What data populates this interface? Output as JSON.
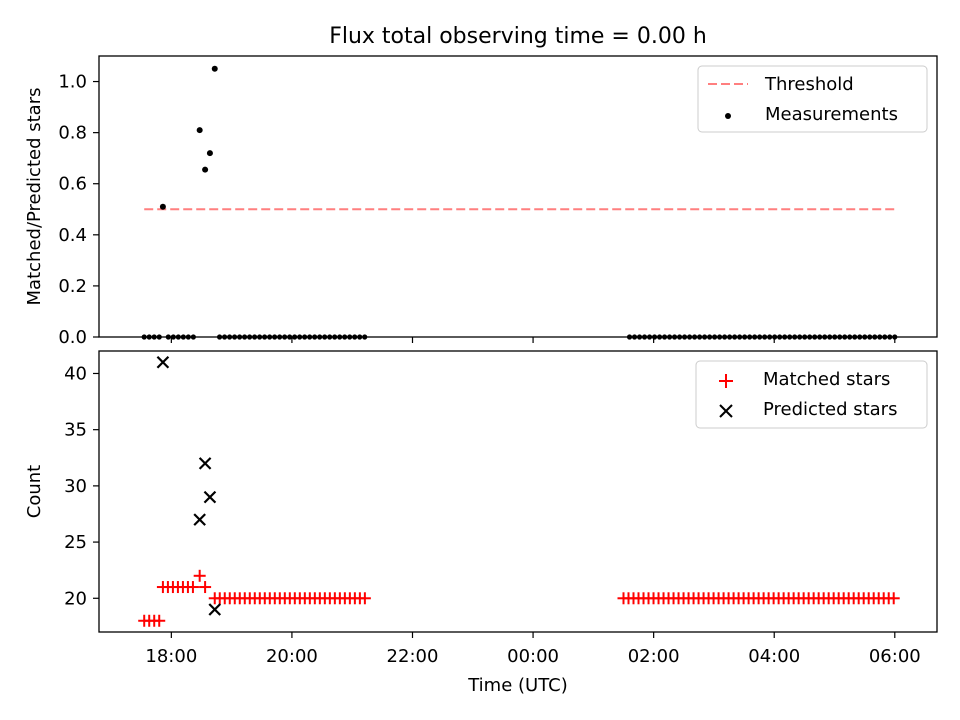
{
  "figure": {
    "title": "Flux total observing time = 0.00 h",
    "xlabel": "Time (UTC)"
  },
  "x_ticks": {
    "times": [
      "18:00",
      "20:00",
      "22:00",
      "00:00",
      "02:00",
      "04:00",
      "06:00"
    ],
    "hours": [
      18,
      20,
      22,
      24,
      26,
      28,
      30
    ]
  },
  "colors": {
    "threshold": "#ff7f7f",
    "measurements": "#000000",
    "matched": "#ff0000",
    "predicted": "#000000"
  },
  "chart_data": [
    {
      "type": "scatter",
      "panel": "top",
      "ylabel": "Matched/Predicted stars",
      "xlim_hours": [
        16.8,
        30.7
      ],
      "ylim": [
        0,
        1.1
      ],
      "yticks": [
        0.0,
        0.2,
        0.4,
        0.6,
        0.8,
        1.0
      ],
      "yticklabels": [
        "0.0",
        "0.2",
        "0.4",
        "0.6",
        "0.8",
        "1.0"
      ],
      "legend_position": "upper right",
      "threshold": {
        "name": "Threshold",
        "value": 0.5,
        "x_range_hours": [
          17.55,
          30.0
        ],
        "style": "dashed"
      },
      "measurements": {
        "name": "Measurements",
        "points": [
          {
            "x": 17.86,
            "y": 0.51
          },
          {
            "x": 18.47,
            "y": 0.81
          },
          {
            "x": 18.56,
            "y": 0.655
          },
          {
            "x": 18.64,
            "y": 0.72
          },
          {
            "x": 18.72,
            "y": 1.05
          }
        ],
        "zero_runs": [
          {
            "start": 17.55,
            "end": 17.8,
            "step": 0.083
          },
          {
            "start": 17.95,
            "end": 18.38,
            "step": 0.083
          },
          {
            "start": 18.8,
            "end": 21.25,
            "step": 0.083
          },
          {
            "start": 25.6,
            "end": 30.05,
            "step": 0.083
          }
        ]
      }
    },
    {
      "type": "scatter",
      "panel": "bottom",
      "ylabel": "Count",
      "xlim_hours": [
        16.8,
        30.7
      ],
      "ylim": [
        17,
        42
      ],
      "yticks": [
        20,
        25,
        30,
        35,
        40
      ],
      "yticklabels": [
        "20",
        "25",
        "30",
        "35",
        "40"
      ],
      "legend_position": "upper right",
      "series": [
        {
          "name": "Matched stars",
          "marker": "plus",
          "points": [
            {
              "x": 18.47,
              "y": 22
            }
          ],
          "runs": [
            {
              "start": 17.55,
              "end": 17.8,
              "step": 0.083,
              "y": 18
            },
            {
              "start": 17.86,
              "end": 18.38,
              "step": 0.083,
              "y": 21
            },
            {
              "start": 18.56,
              "end": 18.64,
              "step": 0.083,
              "y": 21
            },
            {
              "start": 18.72,
              "end": 21.25,
              "step": 0.083,
              "y": 20
            },
            {
              "start": 25.5,
              "end": 30.05,
              "step": 0.083,
              "y": 20
            }
          ]
        },
        {
          "name": "Predicted stars",
          "marker": "x",
          "points": [
            {
              "x": 17.86,
              "y": 41
            },
            {
              "x": 18.47,
              "y": 27
            },
            {
              "x": 18.56,
              "y": 32
            },
            {
              "x": 18.64,
              "y": 29
            },
            {
              "x": 18.72,
              "y": 19
            }
          ]
        }
      ]
    }
  ]
}
